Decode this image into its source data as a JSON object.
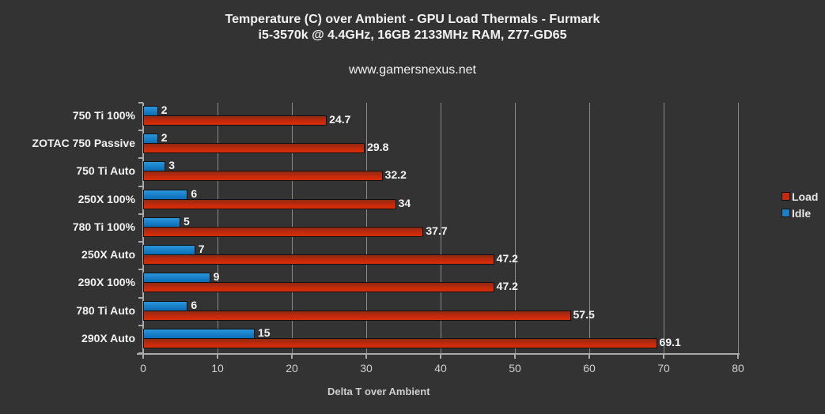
{
  "chart_data": {
    "type": "bar",
    "orientation": "horizontal",
    "title": "Temperature (C) over Ambient - GPU Load Thermals - Furmark",
    "subtitle": "i5-3570k @ 4.4GHz, 16GB 2133MHz RAM, Z77-GD65",
    "watermark": "www.gamersnexus.net",
    "xlabel": "Delta T over Ambient",
    "ylabel": "",
    "xlim": [
      0,
      80
    ],
    "xticks": [
      0,
      10,
      20,
      30,
      40,
      50,
      60,
      70,
      80
    ],
    "grid": true,
    "legend_position": "right",
    "categories": [
      "750 Ti 100%",
      "ZOTAC 750 Passive",
      "750 Ti Auto",
      "250X 100%",
      "780 Ti 100%",
      "250X Auto",
      "290X 100%",
      "780 Ti Auto",
      "290X Auto"
    ],
    "series": [
      {
        "name": "Load",
        "color": "#c62a0c",
        "values": [
          24.7,
          29.8,
          32.2,
          34,
          37.7,
          47.2,
          47.2,
          57.5,
          69.1
        ]
      },
      {
        "name": "Idle",
        "color": "#1a7fc6",
        "values": [
          2,
          2,
          3,
          6,
          5,
          7,
          9,
          6,
          15
        ]
      }
    ]
  },
  "labels": {
    "title": "Temperature (C) over Ambient - GPU Load Thermals - Furmark",
    "subtitle": "i5-3570k @ 4.4GHz, 16GB 2133MHz RAM, Z77-GD65",
    "url": "www.gamersnexus.net",
    "xlabel": "Delta T over Ambient",
    "legend_load": "Load",
    "legend_idle": "Idle"
  }
}
